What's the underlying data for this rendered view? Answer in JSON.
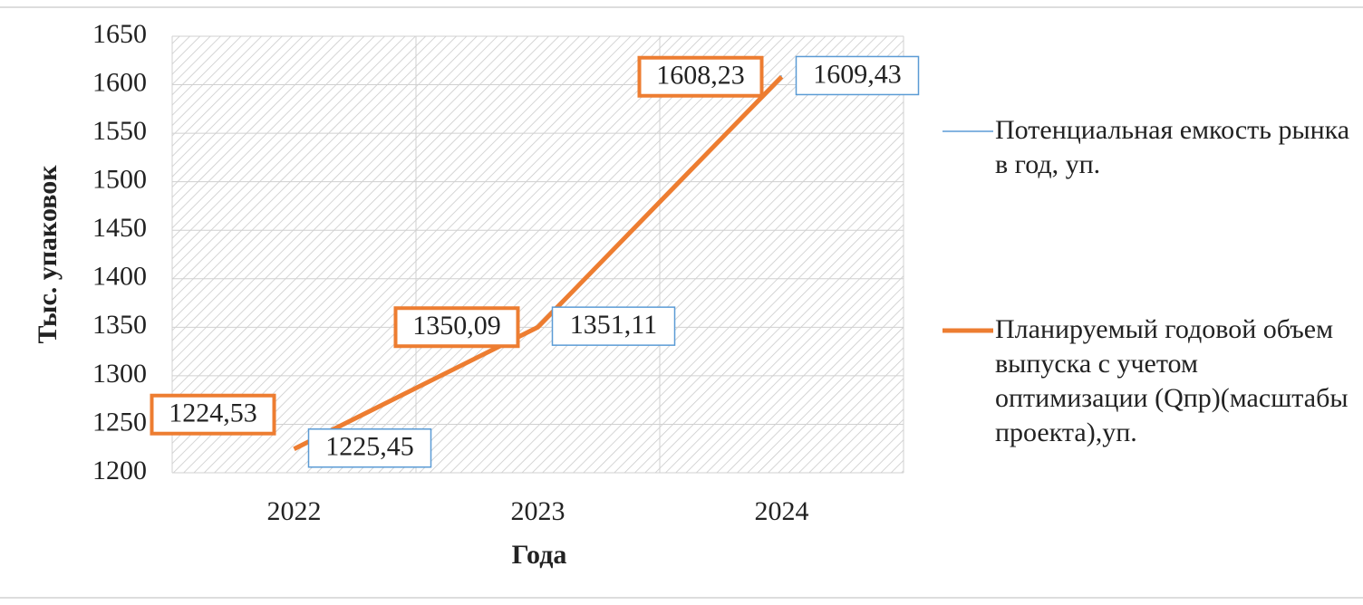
{
  "chart_data": {
    "type": "line",
    "x_label": "Года",
    "y_label": "Тыс. упаковок",
    "categories": [
      "2022",
      "2023",
      "2024"
    ],
    "series": [
      {
        "name": "Потенциальная емкость рынка в год, уп.",
        "color": "#5b9bd5",
        "values": [
          1225.45,
          1351.11,
          1609.43
        ],
        "value_labels": [
          "1225,45",
          "1351,11",
          "1609,43"
        ]
      },
      {
        "name": "Планируемый годовой объем выпуска с учетом оптимизации (Qпр)(масштабы проекта),уп.",
        "color": "#ed7d31",
        "values": [
          1224.53,
          1350.09,
          1608.23
        ],
        "value_labels": [
          "1224,53",
          "1350,09",
          "1608,23"
        ]
      }
    ],
    "ylim": [
      1200,
      1650
    ],
    "yticks": [
      1200,
      1250,
      1300,
      1350,
      1400,
      1450,
      1500,
      1550,
      1600,
      1650
    ],
    "grid": true,
    "legend": "right"
  }
}
